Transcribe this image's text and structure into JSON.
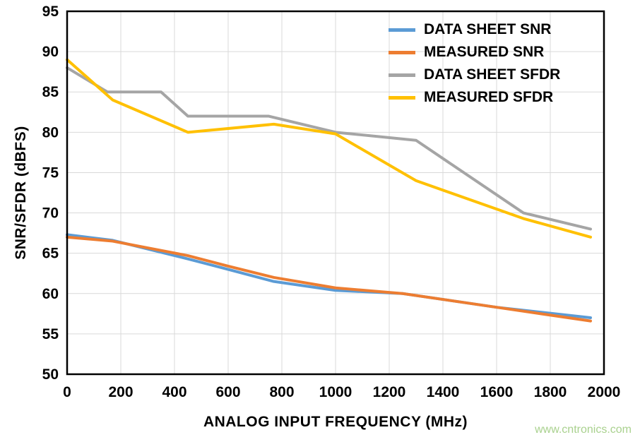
{
  "watermark": "www.cntronics.com",
  "chart_data": {
    "type": "line",
    "title": "",
    "xlabel": "ANALOG INPUT FREQUENCY (MHz)",
    "ylabel": "SNR/SFDR (dBFS)",
    "xlim": [
      0,
      2000
    ],
    "ylim": [
      50,
      95
    ],
    "xticks": [
      0,
      200,
      400,
      600,
      800,
      1000,
      1200,
      1400,
      1600,
      1800,
      2000
    ],
    "yticks": [
      50,
      55,
      60,
      65,
      70,
      75,
      80,
      85,
      90,
      95
    ],
    "grid": true,
    "grid_color": "#d9d9d9",
    "frame_color": "#000000",
    "legend_position": "top-right",
    "series": [
      {
        "name": "DATA SHEET SNR",
        "color": "#5B9BD5",
        "x": [
          0,
          170,
          450,
          600,
          770,
          1000,
          1250,
          1600,
          1950
        ],
        "y": [
          67.3,
          66.6,
          64.3,
          63.0,
          61.5,
          60.4,
          60.0,
          58.3,
          57.0
        ]
      },
      {
        "name": "MEASURED SNR",
        "color": "#ED7D31",
        "x": [
          0,
          170,
          450,
          600,
          770,
          1000,
          1250,
          1600,
          1950
        ],
        "y": [
          67.0,
          66.5,
          64.7,
          63.4,
          62.0,
          60.7,
          60.0,
          58.3,
          56.6
        ]
      },
      {
        "name": "DATA SHEET SFDR",
        "color": "#A5A5A5",
        "x": [
          0,
          150,
          350,
          450,
          600,
          750,
          1000,
          1300,
          1700,
          1950
        ],
        "y": [
          88,
          85,
          85,
          82,
          82,
          82,
          80,
          79,
          70,
          68
        ]
      },
      {
        "name": "MEASURED SFDR",
        "color": "#FFC000",
        "x": [
          0,
          170,
          450,
          770,
          1000,
          1300,
          1700,
          1950
        ],
        "y": [
          89,
          84,
          80,
          81,
          79.8,
          74,
          69.3,
          67
        ]
      }
    ]
  }
}
